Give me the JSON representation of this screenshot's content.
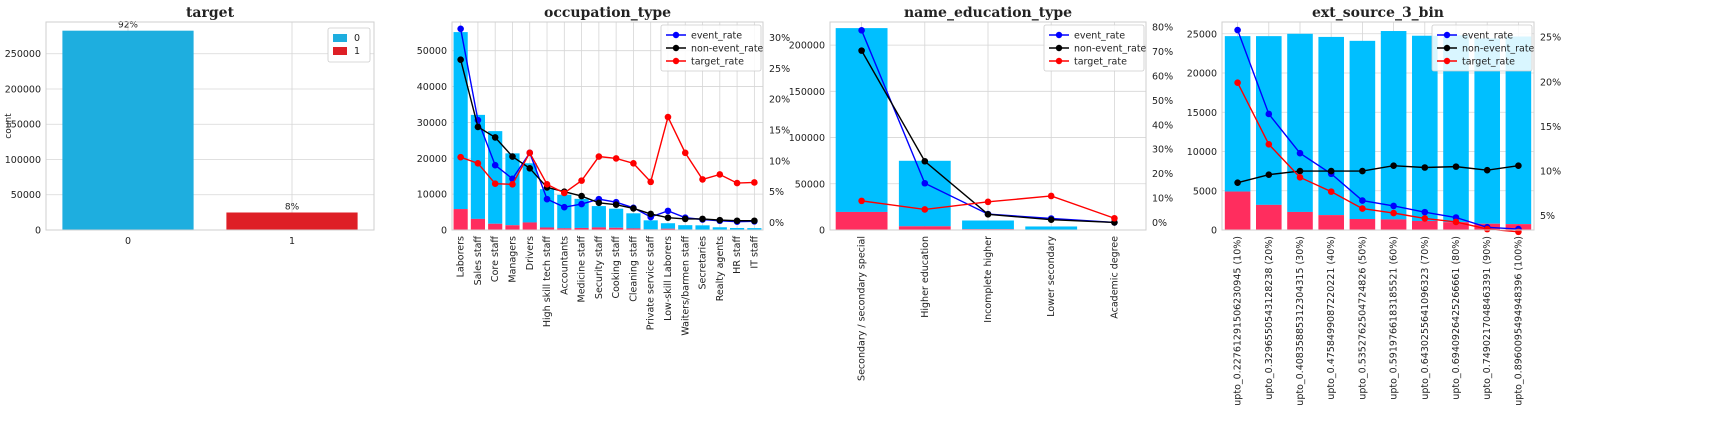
{
  "chart_data": [
    {
      "type": "bar",
      "title": "target",
      "ylabel": "count",
      "categories": [
        "0",
        "1"
      ],
      "values": [
        282686,
        24825
      ],
      "bar_labels": [
        "92%",
        "8%"
      ],
      "colors": [
        "#1eaedf",
        "#de1f26"
      ],
      "ylim": [
        0,
        295000
      ],
      "yticks": [
        0,
        50000,
        100000,
        150000,
        200000,
        250000
      ],
      "legend": {
        "position": "top-right",
        "entries": [
          "0",
          "1"
        ]
      }
    },
    {
      "type": "bar+line",
      "title": "occupation_type",
      "categories": [
        "Laborers",
        "Sales staff",
        "Core staff",
        "Managers",
        "Drivers",
        "High skill tech staff",
        "Accountants",
        "Medicine staff",
        "Security staff",
        "Cooking staff",
        "Cleaning staff",
        "Private service staff",
        "Low-skill Laborers",
        "Waiters/barmen staff",
        "Secretaries",
        "Realty agents",
        "HR staff",
        "IT staff"
      ],
      "bar_series": [
        {
          "name": "non-event",
          "color": "#00bfff",
          "values": [
            49348,
            29010,
            25832,
            20043,
            16496,
            10679,
            9339,
            8118,
            5947,
            5325,
            4206,
            2523,
            1529,
            1196,
            1213,
            703,
            535,
            492
          ]
        },
        {
          "name": "event",
          "color": "#ff2d5e",
          "values": [
            5838,
            3092,
            1738,
            1328,
            2107,
            701,
            474,
            572,
            722,
            621,
            447,
            175,
            359,
            152,
            92,
            59,
            28,
            34
          ]
        }
      ],
      "ylim": [
        0,
        58000
      ],
      "yticks": [
        0,
        10000,
        20000,
        30000,
        40000,
        50000
      ],
      "y2lim": [
        -0.012,
        0.325
      ],
      "y2ticks": [
        0,
        0.05,
        0.1,
        0.15,
        0.2,
        0.25,
        0.3
      ],
      "y2ticklabels": [
        "0%",
        "5%",
        "10%",
        "15%",
        "20%",
        "25%",
        "30%"
      ],
      "line_series": [
        {
          "name": "event_rate",
          "color": "#0000ff",
          "values": [
            0.314,
            0.166,
            0.093,
            0.071,
            0.113,
            0.038,
            0.025,
            0.03,
            0.038,
            0.033,
            0.024,
            0.009,
            0.019,
            0.008,
            0.005,
            0.003,
            0.0015,
            0.002
          ]
        },
        {
          "name": "non-event_rate",
          "color": "#000000",
          "values": [
            0.264,
            0.155,
            0.138,
            0.107,
            0.088,
            0.057,
            0.05,
            0.043,
            0.032,
            0.029,
            0.023,
            0.014,
            0.008,
            0.006,
            0.006,
            0.004,
            0.003,
            0.003
          ]
        },
        {
          "name": "target_rate",
          "color": "#ff0000",
          "values": [
            0.106,
            0.096,
            0.063,
            0.062,
            0.113,
            0.062,
            0.048,
            0.068,
            0.107,
            0.104,
            0.096,
            0.066,
            0.171,
            0.113,
            0.07,
            0.078,
            0.064,
            0.065
          ]
        }
      ],
      "legend": {
        "position": "top-right",
        "entries": [
          "event_rate",
          "non-event_rate",
          "target_rate"
        ]
      }
    },
    {
      "type": "bar+line",
      "title": "name_education_type",
      "categories": [
        "Secondary / secondary special",
        "Higher education",
        "Incomplete higher",
        "Lower secondary",
        "Academic degree"
      ],
      "bar_series": [
        {
          "name": "non-event",
          "color": "#00bfff",
          "values": [
            198867,
            70854,
            9405,
            3399,
            161
          ]
        },
        {
          "name": "event",
          "color": "#ff2d5e",
          "values": [
            19524,
            4009,
            872,
            417,
            3
          ]
        }
      ],
      "ylim": [
        0,
        225000
      ],
      "yticks": [
        0,
        50000,
        100000,
        150000,
        200000
      ],
      "y2lim": [
        -0.03,
        0.82
      ],
      "y2ticks": [
        0,
        0.1,
        0.2,
        0.3,
        0.4,
        0.5,
        0.6,
        0.7,
        0.8
      ],
      "y2ticklabels": [
        "0%",
        "10%",
        "20%",
        "30%",
        "40%",
        "50%",
        "60%",
        "70%",
        "80%"
      ],
      "line_series": [
        {
          "name": "event_rate",
          "color": "#0000ff",
          "values": [
            0.786,
            0.161,
            0.035,
            0.017,
            0.001
          ]
        },
        {
          "name": "non-event_rate",
          "color": "#000000",
          "values": [
            0.703,
            0.251,
            0.034,
            0.012,
            0.001
          ]
        },
        {
          "name": "target_rate",
          "color": "#ff0000",
          "values": [
            0.089,
            0.054,
            0.085,
            0.109,
            0.018
          ]
        }
      ],
      "legend": {
        "position": "top-right",
        "entries": [
          "event_rate",
          "non-event_rate",
          "target_rate"
        ]
      }
    },
    {
      "type": "bar+line",
      "title": "ext_source_3_bin",
      "categories": [
        "upto_0.22761291506230945 (10%)",
        "upto_0.3296550543128238 (20%)",
        "upto_0.40835885312304315 (30%)",
        "upto_0.4758499087220221 (40%)",
        "upto_0.5352762504724826 (50%)",
        "upto_0.5919766183185521 (60%)",
        "upto_0.6430255641096323 (70%)",
        "upto_0.6940926425266661 (80%)",
        "upto_0.7490217048463391 (90%)",
        "upto_0.8960095494948396 (100%)"
      ],
      "bar_series": [
        {
          "name": "non-event",
          "color": "#00bfff",
          "values": [
            19800,
            21500,
            22700,
            22700,
            22700,
            24000,
            23600,
            23800,
            23600,
            23900
          ]
        },
        {
          "name": "event",
          "color": "#ff2d5e",
          "values": [
            4900,
            3200,
            2300,
            1900,
            1400,
            1350,
            1150,
            1000,
            800,
            750
          ]
        }
      ],
      "ylim": [
        0,
        26500
      ],
      "yticks": [
        0,
        5000,
        10000,
        15000,
        20000,
        25000
      ],
      "y2lim": [
        0.034,
        0.267
      ],
      "y2ticks": [
        0.05,
        0.1,
        0.15,
        0.2,
        0.25
      ],
      "y2ticklabels": [
        "5%",
        "10%",
        "15%",
        "20%",
        "25%"
      ],
      "line_series": [
        {
          "name": "event_rate",
          "color": "#0000ff",
          "values": [
            0.258,
            0.164,
            0.12,
            0.097,
            0.067,
            0.061,
            0.054,
            0.048,
            0.037,
            0.035
          ]
        },
        {
          "name": "non-event_rate",
          "color": "#000000",
          "values": [
            0.087,
            0.096,
            0.1,
            0.1,
            0.1,
            0.106,
            0.104,
            0.105,
            0.101,
            0.106
          ]
        },
        {
          "name": "target_rate",
          "color": "#ff0000",
          "values": [
            0.199,
            0.13,
            0.093,
            0.077,
            0.058,
            0.053,
            0.047,
            0.043,
            0.035,
            0.032
          ]
        }
      ],
      "legend": {
        "position": "top-right",
        "entries": [
          "event_rate",
          "non-event_rate",
          "target_rate"
        ]
      }
    }
  ]
}
